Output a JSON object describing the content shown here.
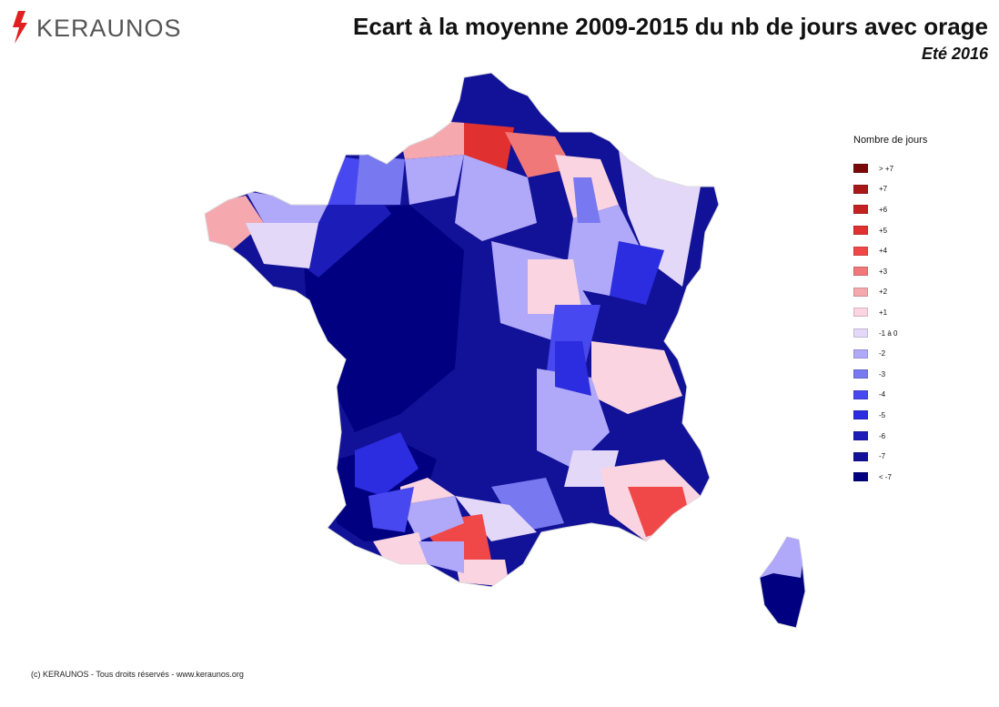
{
  "brand": {
    "logo_text": "KERAUNOS",
    "logo_color": "#e02020"
  },
  "title": {
    "main": "Ecart à la moyenne 2009-2015 du nb de jours avec orage",
    "subtitle": "Eté 2016"
  },
  "legend": {
    "title": "Nombre de jours",
    "items": [
      {
        "label": "> +7",
        "color": "#7a0a0a"
      },
      {
        "label": "+7",
        "color": "#a81818"
      },
      {
        "label": "+6",
        "color": "#c42222"
      },
      {
        "label": "+5",
        "color": "#e03030"
      },
      {
        "label": "+4",
        "color": "#f04848"
      },
      {
        "label": "+3",
        "color": "#f07878"
      },
      {
        "label": "+2",
        "color": "#f5a8ae"
      },
      {
        "label": "+1",
        "color": "#fad4e0"
      },
      {
        "label": "-1 à 0",
        "color": "#e4d8f8"
      },
      {
        "label": "-2",
        "color": "#b0a8f8"
      },
      {
        "label": "-3",
        "color": "#7878f0"
      },
      {
        "label": "-4",
        "color": "#4848f0"
      },
      {
        "label": "-5",
        "color": "#2c2ce0"
      },
      {
        "label": "-6",
        "color": "#1c1cb8"
      },
      {
        "label": "-7",
        "color": "#121298"
      },
      {
        "label": "< -7",
        "color": "#000080"
      }
    ]
  },
  "footer": {
    "copyright": "(c) KERAUNOS - Tous droits réservés - www.keraunos.org"
  }
}
